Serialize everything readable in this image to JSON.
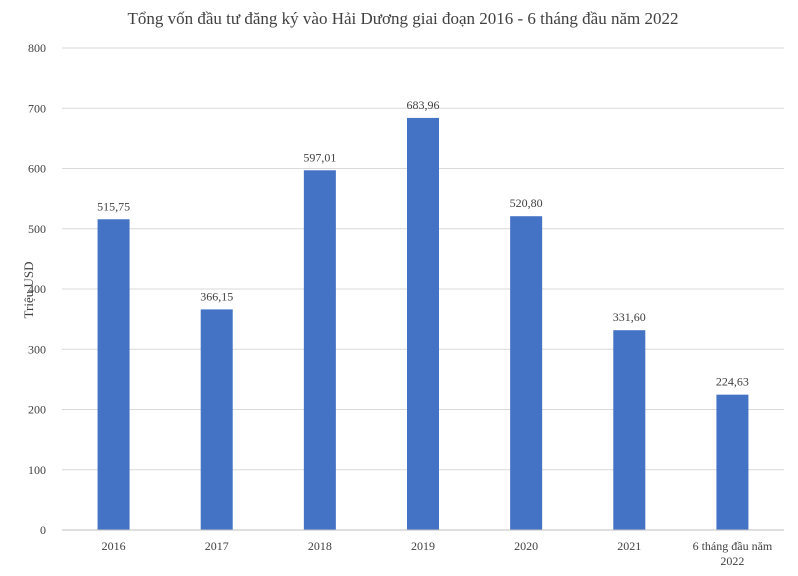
{
  "chart_data": {
    "type": "bar",
    "title": "Tổng vốn đầu tư đăng ký vào Hải Dương giai đoạn 2016 - 6 tháng đầu năm 2022",
    "ylabel": "Triệu USD",
    "xlabel": "",
    "ylim": [
      0,
      800
    ],
    "yticks": [
      0,
      100,
      200,
      300,
      400,
      500,
      600,
      700,
      800
    ],
    "grid": true,
    "categories": [
      [
        "2016"
      ],
      [
        "2017"
      ],
      [
        "2018"
      ],
      [
        "2019"
      ],
      [
        "2020"
      ],
      [
        "2021"
      ],
      [
        "6 tháng đầu năm",
        "2022"
      ]
    ],
    "values": [
      515.75,
      366.15,
      597.01,
      683.96,
      520.8,
      331.6,
      224.63
    ],
    "value_labels": [
      "515,75",
      "366,15",
      "597,01",
      "683,96",
      "520,80",
      "331,60",
      "224,63"
    ],
    "bar_color": "#4472c4"
  }
}
